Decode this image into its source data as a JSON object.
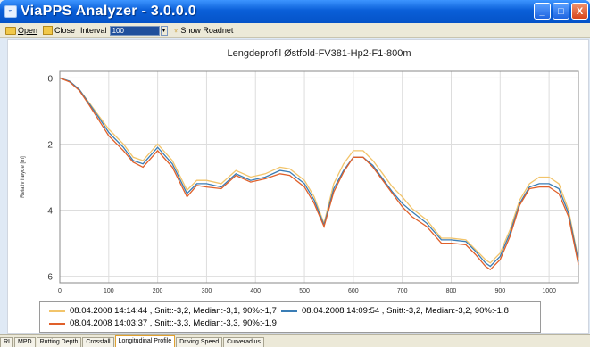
{
  "window": {
    "title": "ViaPPS Analyzer - 3.0.0.0",
    "buttons": {
      "minimize": "_",
      "maximize": "□",
      "close": "X"
    }
  },
  "toolbar": {
    "open_label": "Open",
    "close_label": "Close",
    "interval_label": "Interval",
    "interval_value": "100",
    "spin_glyph": "▾",
    "show_roadnet_label": "Show Roadnet"
  },
  "tabs": [
    {
      "label": "RI",
      "active": false
    },
    {
      "label": "MPD",
      "active": false
    },
    {
      "label": "Rutting Depth",
      "active": false
    },
    {
      "label": "Crossfall",
      "active": false
    },
    {
      "label": "Longitudinal Profile",
      "active": true
    },
    {
      "label": "Driving Speed",
      "active": false
    },
    {
      "label": "Curveradius",
      "active": false
    }
  ],
  "chart_data": {
    "type": "line",
    "title": "Lengdeprofil Østfold-FV381-Hp2-F1-800m",
    "xlabel": "",
    "ylabel": "Relativ høyde [m]",
    "xlim": [
      0,
      1060
    ],
    "ylim": [
      -6.2,
      0.2
    ],
    "xticks": [
      0,
      100,
      200,
      300,
      400,
      500,
      600,
      700,
      800,
      900,
      1000
    ],
    "yticks": [
      0,
      -2,
      -4,
      -6
    ],
    "grid": true,
    "legend_position": "bottom",
    "series": [
      {
        "name": "08.04.2008 14:14:44 , Snitt:-3,2, Median:-3,1, 90%:-1,7",
        "color": "#f2c46a",
        "x": [
          0,
          20,
          40,
          60,
          80,
          100,
          130,
          150,
          170,
          200,
          230,
          260,
          280,
          300,
          330,
          360,
          390,
          420,
          450,
          470,
          500,
          520,
          540,
          560,
          580,
          600,
          620,
          640,
          660,
          680,
          700,
          720,
          750,
          780,
          800,
          830,
          850,
          870,
          880,
          900,
          920,
          940,
          960,
          980,
          1000,
          1020,
          1040,
          1060
        ],
        "y": [
          0,
          -0.1,
          -0.35,
          -0.75,
          -1.15,
          -1.55,
          -2.0,
          -2.4,
          -2.5,
          -2.0,
          -2.5,
          -3.4,
          -3.1,
          -3.1,
          -3.2,
          -2.8,
          -3.0,
          -2.9,
          -2.7,
          -2.75,
          -3.1,
          -3.6,
          -4.4,
          -3.2,
          -2.6,
          -2.2,
          -2.2,
          -2.5,
          -2.9,
          -3.3,
          -3.6,
          -3.95,
          -4.3,
          -4.85,
          -4.85,
          -4.9,
          -5.2,
          -5.5,
          -5.6,
          -5.3,
          -4.6,
          -3.7,
          -3.2,
          -3.0,
          -3.0,
          -3.2,
          -4.0,
          -5.5
        ]
      },
      {
        "name": "08.04.2008 14:09:54 , Snitt:-3,2, Median:-3,2, 90%:-1,8",
        "color": "#3a7db5",
        "x": [
          0,
          20,
          40,
          60,
          80,
          100,
          130,
          150,
          170,
          200,
          230,
          260,
          280,
          300,
          330,
          360,
          390,
          420,
          450,
          470,
          500,
          520,
          540,
          560,
          580,
          600,
          620,
          640,
          660,
          680,
          700,
          720,
          750,
          780,
          800,
          830,
          850,
          870,
          880,
          900,
          920,
          940,
          960,
          980,
          1000,
          1020,
          1040,
          1060
        ],
        "y": [
          0,
          -0.1,
          -0.35,
          -0.78,
          -1.2,
          -1.65,
          -2.1,
          -2.5,
          -2.6,
          -2.1,
          -2.6,
          -3.5,
          -3.2,
          -3.2,
          -3.3,
          -2.9,
          -3.1,
          -3.0,
          -2.8,
          -2.85,
          -3.2,
          -3.7,
          -4.45,
          -3.35,
          -2.8,
          -2.4,
          -2.4,
          -2.65,
          -3.05,
          -3.45,
          -3.8,
          -4.05,
          -4.4,
          -4.9,
          -4.9,
          -4.95,
          -5.25,
          -5.6,
          -5.7,
          -5.4,
          -4.7,
          -3.8,
          -3.3,
          -3.2,
          -3.2,
          -3.35,
          -4.1,
          -5.55
        ]
      },
      {
        "name": "08.04.2008 14:03:37 , Snitt:-3,3, Median:-3,3, 90%:-1,9",
        "color": "#e0602a",
        "x": [
          0,
          20,
          40,
          60,
          80,
          100,
          130,
          150,
          170,
          200,
          230,
          260,
          280,
          300,
          330,
          360,
          390,
          420,
          450,
          470,
          500,
          520,
          540,
          560,
          580,
          600,
          620,
          640,
          660,
          680,
          700,
          720,
          750,
          780,
          800,
          830,
          850,
          870,
          880,
          900,
          920,
          940,
          960,
          980,
          1000,
          1020,
          1040,
          1060
        ],
        "y": [
          0,
          -0.12,
          -0.38,
          -0.82,
          -1.28,
          -1.75,
          -2.2,
          -2.55,
          -2.7,
          -2.2,
          -2.7,
          -3.6,
          -3.25,
          -3.3,
          -3.35,
          -2.95,
          -3.15,
          -3.05,
          -2.9,
          -2.95,
          -3.3,
          -3.8,
          -4.5,
          -3.45,
          -2.85,
          -2.4,
          -2.4,
          -2.7,
          -3.1,
          -3.5,
          -3.9,
          -4.2,
          -4.5,
          -5.0,
          -5.0,
          -5.05,
          -5.35,
          -5.7,
          -5.8,
          -5.5,
          -4.8,
          -3.85,
          -3.35,
          -3.3,
          -3.3,
          -3.5,
          -4.2,
          -5.65
        ]
      }
    ]
  }
}
